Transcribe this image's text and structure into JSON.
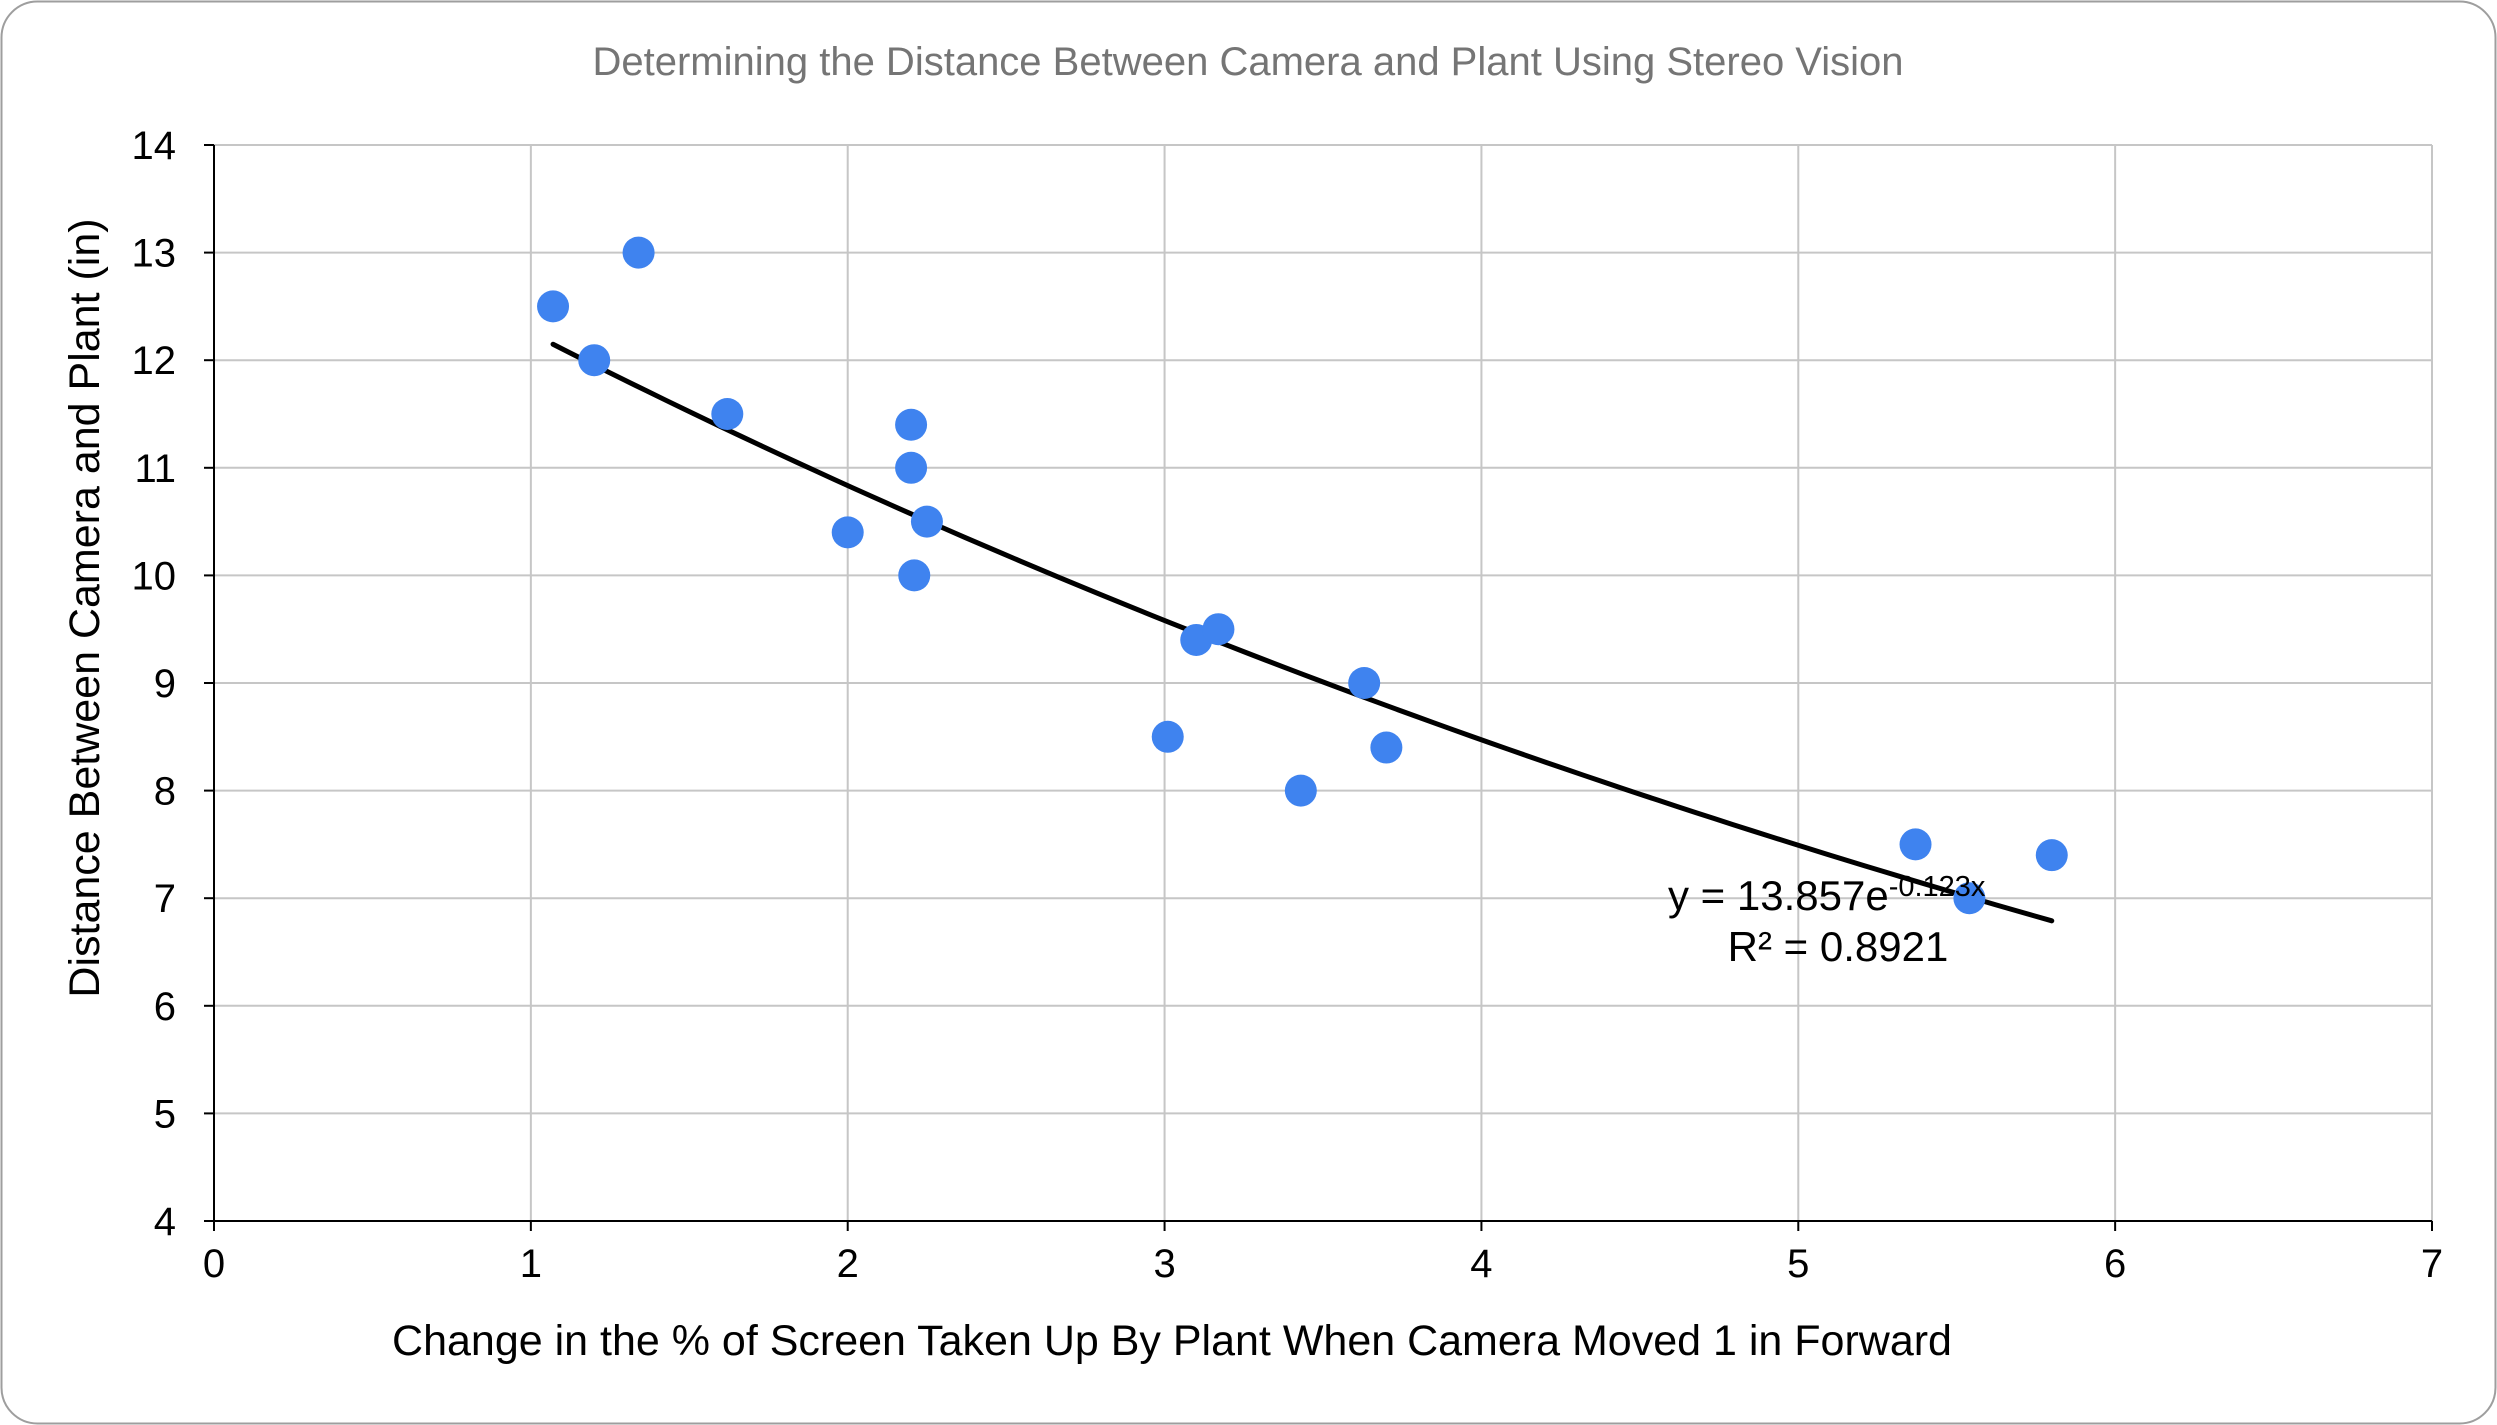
{
  "chart_data": {
    "type": "scatter",
    "title": "Determining the Distance Between Camera and Plant Using Stereo Vision",
    "xlabel": "Change in the % of Screen Taken Up By Plant When Camera Moved 1 in Forward",
    "ylabel": "Distance Between Camera and Plant (in)",
    "xlim": [
      0,
      7
    ],
    "ylim": [
      4,
      14
    ],
    "x_ticks": [
      "0",
      "1",
      "2",
      "3",
      "4",
      "5",
      "6",
      "7"
    ],
    "y_ticks": [
      "4",
      "5",
      "6",
      "7",
      "8",
      "9",
      "10",
      "11",
      "12",
      "13",
      "14"
    ],
    "grid": true,
    "legend": "none",
    "series": [
      {
        "points": [
          {
            "x": 1.07,
            "y": 12.5
          },
          {
            "x": 1.2,
            "y": 12.0
          },
          {
            "x": 1.34,
            "y": 13.0
          },
          {
            "x": 1.62,
            "y": 11.5
          },
          {
            "x": 2.0,
            "y": 10.4
          },
          {
            "x": 2.2,
            "y": 11.4
          },
          {
            "x": 2.2,
            "y": 11.0
          },
          {
            "x": 2.21,
            "y": 10.0
          },
          {
            "x": 2.25,
            "y": 10.5
          },
          {
            "x": 3.01,
            "y": 8.5
          },
          {
            "x": 3.1,
            "y": 9.4
          },
          {
            "x": 3.17,
            "y": 9.5
          },
          {
            "x": 3.43,
            "y": 8.0
          },
          {
            "x": 3.63,
            "y": 9.0
          },
          {
            "x": 3.7,
            "y": 8.4
          },
          {
            "x": 5.37,
            "y": 7.5
          },
          {
            "x": 5.54,
            "y": 7.0
          },
          {
            "x": 5.8,
            "y": 7.4
          }
        ]
      }
    ],
    "trendline": {
      "kind": "exponential",
      "a": 13.857,
      "b": -0.123,
      "x_range": [
        1.07,
        5.8
      ],
      "equation_base": "y = 13.857e",
      "equation_exponent": "-0.123x",
      "r_squared": "R² = 0.8921"
    },
    "colors": {
      "points": "#3f83ef",
      "trendline": "#000000",
      "grid": "#c6c6c6",
      "axis": "#000000",
      "title": "#757575",
      "frame_border": "#9e9e9e"
    }
  }
}
